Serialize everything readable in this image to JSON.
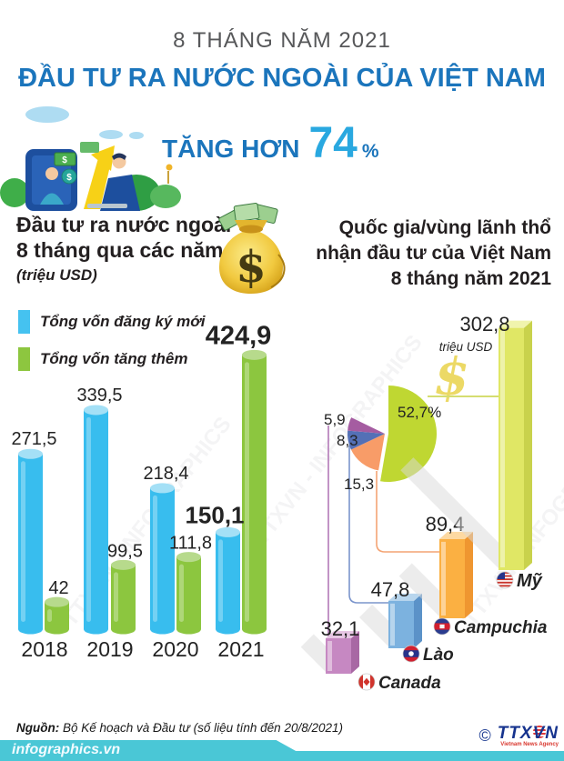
{
  "header": {
    "kicker": "8 THÁNG NĂM 2021",
    "title": "ĐẦU TƯ RA NƯỚC NGOÀI CỦA VIỆT NAM",
    "subtitle_prefix": "TĂNG HƠN",
    "subtitle_value": "74",
    "subtitle_suffix": "%"
  },
  "left_section": {
    "title_line1": "Đầu tư ra nước ngoài",
    "title_line2": "8 tháng qua các năm",
    "title_unit": "(triệu USD)",
    "legend": [
      {
        "label": "Tổng vốn đăng ký mới",
        "color": "#45c2f0"
      },
      {
        "label": "Tổng vốn tăng thêm",
        "color": "#8dc63f"
      }
    ]
  },
  "right_section": {
    "title_line1": "Quốc gia/vùng lãnh thổ",
    "title_line2": "nhận đầu tư của Việt Nam",
    "title_line3": "8 tháng năm 2021",
    "unit": "triệu USD",
    "dollar_watermark": "$"
  },
  "chart_data": [
    {
      "type": "bar",
      "title": "Đầu tư ra nước ngoài 8 tháng qua các năm (triệu USD)",
      "categories": [
        "2018",
        "2019",
        "2020",
        "2021"
      ],
      "series": [
        {
          "name": "Tổng vốn đăng ký mới",
          "color": "#38bdee",
          "top_color": "#a4e0f6",
          "values": [
            271.5,
            339.5,
            218.4,
            150.1
          ],
          "labels": [
            "271,5",
            "339,5",
            "218,4",
            "150,1"
          ]
        },
        {
          "name": "Tổng vốn tăng thêm",
          "color": "#8cc63f",
          "top_color": "#b7da8c",
          "values": [
            42,
            99.5,
            111.8,
            424.9
          ],
          "labels": [
            "42",
            "99,5",
            "111,8",
            "424,9"
          ]
        }
      ],
      "highlight_2021": {
        "new_color": "#1b9cd9",
        "added_color": "#3fae49"
      },
      "ylabel": "triệu USD"
    },
    {
      "type": "pie",
      "note": "share of Vietnam outbound investment by destination, %",
      "slices": [
        {
          "country": "Mỹ",
          "value": 52.7,
          "label": "52,7%",
          "color": "#bfd732"
        },
        {
          "country": "Campuchia",
          "value": 15.3,
          "label": "15,3",
          "color": "#f89c68"
        },
        {
          "country": "Lào",
          "value": 8.3,
          "label": "8,3",
          "color": "#5470b6"
        },
        {
          "country": "Canada",
          "value": 5.9,
          "label": "5,9",
          "color": "#a55ca1"
        }
      ]
    },
    {
      "type": "bar",
      "title": "Quốc gia/vùng lãnh thổ nhận đầu tư của Việt Nam 8 tháng năm 2021 (triệu USD)",
      "categories": [
        "Canada",
        "Lào",
        "Campuchia",
        "Mỹ"
      ],
      "values": [
        32.1,
        47.8,
        89.4,
        302.8
      ],
      "labels": [
        "32,1",
        "47,8",
        "89,4",
        "302,8"
      ],
      "colors": [
        "#c688c2",
        "#7cb2df",
        "#fbb042",
        "#e0e765"
      ],
      "name_colors": [
        "#a05fa8",
        "#6cb9e3",
        "#f7941d",
        "#e3c83b"
      ],
      "flags": [
        "canada-flag-icon",
        "laos-flag-icon",
        "cambodia-flag-icon",
        "us-flag-icon"
      ]
    }
  ],
  "footer": {
    "source_label": "Nguồn:",
    "source_text": " Bộ Kế hoạch và Đầu tư (số liệu tính đến 20/8/2021)",
    "site": "infographics.vn",
    "copyright": "©",
    "agency": "TTXVN",
    "agency_sub": "Vietnam News Agency"
  },
  "watermark": "TTXVN - INFOGRAPHICS",
  "palette": {
    "accent_blue": "#1b75bc",
    "light_blue": "#29a8e0",
    "teal_band": "#4ac7d6",
    "gold": "#e9d34b"
  }
}
